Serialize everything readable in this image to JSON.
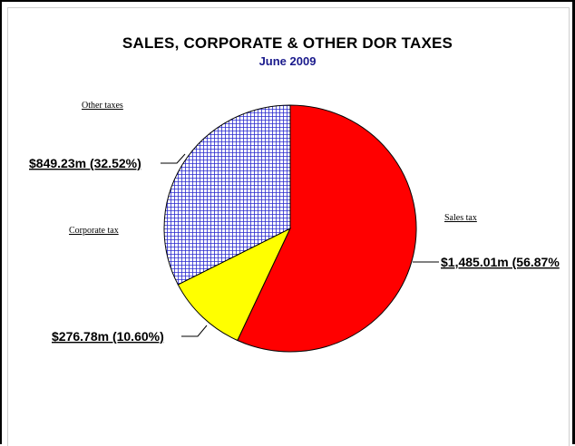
{
  "chart_data": {
    "type": "pie",
    "title": "SALES, CORPORATE & OTHER DOR TAXES",
    "subtitle": "June 2009",
    "slices": [
      {
        "name": "Sales tax",
        "value": 1485.01,
        "percent": 56.87,
        "label": "$1,485.01m (56.87%",
        "color": "#ff0000",
        "pattern": "solid"
      },
      {
        "name": "Corporate tax",
        "value": 276.78,
        "percent": 10.6,
        "label": "$276.78m (10.60%)",
        "color": "#ffff00",
        "pattern": "solid"
      },
      {
        "name": "Other taxes",
        "value": 849.23,
        "percent": 32.52,
        "label": "$849.23m (32.52%)",
        "color": "#0000cc",
        "pattern": "crosshatch"
      }
    ],
    "start_angle_deg": 0,
    "direction": "clockwise",
    "legend": "none"
  }
}
